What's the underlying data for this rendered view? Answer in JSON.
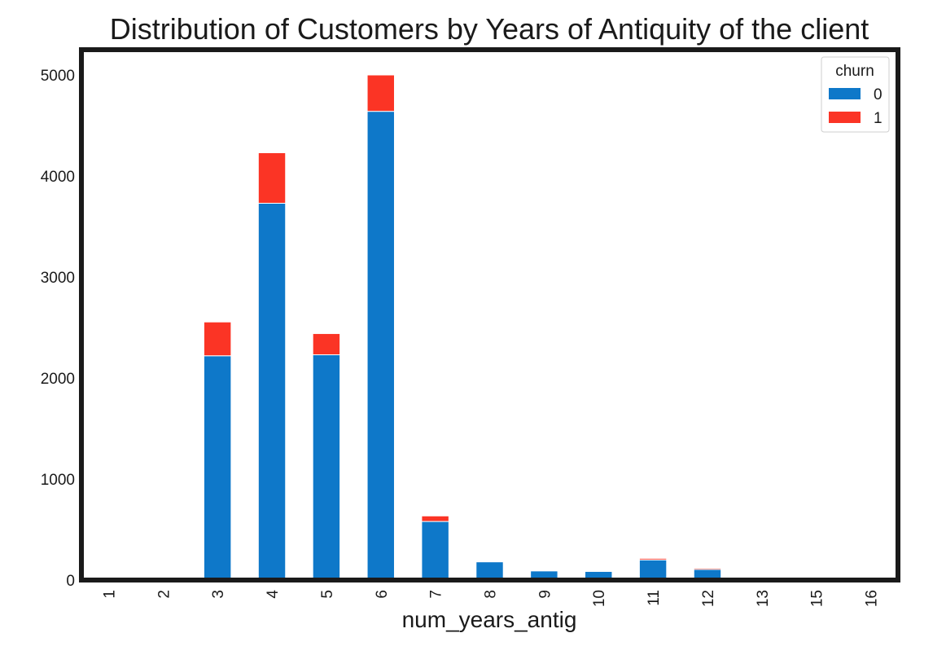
{
  "chart_data": {
    "type": "bar",
    "stacked": true,
    "title": "Distribution of Customers by Years of Antiquity of the client",
    "xlabel": "num_years_antig",
    "ylabel": "",
    "categories": [
      "1",
      "2",
      "3",
      "4",
      "5",
      "6",
      "7",
      "8",
      "9",
      "10",
      "11",
      "12",
      "13",
      "15",
      "16"
    ],
    "series": [
      {
        "name": "0",
        "color": "#0e78c9",
        "values": [
          0,
          0,
          2220,
          3730,
          2230,
          4640,
          580,
          180,
          90,
          85,
          200,
          105,
          3,
          1,
          1
        ]
      },
      {
        "name": "1",
        "color": "#fb3425",
        "values": [
          0,
          0,
          335,
          500,
          210,
          360,
          55,
          0,
          0,
          0,
          15,
          12,
          0,
          0,
          0
        ]
      }
    ],
    "ylim": [
      0,
      5250
    ],
    "yticks": [
      0,
      1000,
      2000,
      3000,
      4000,
      5000
    ],
    "legend": {
      "title": "churn",
      "placement": "top-right"
    },
    "grid": false
  }
}
